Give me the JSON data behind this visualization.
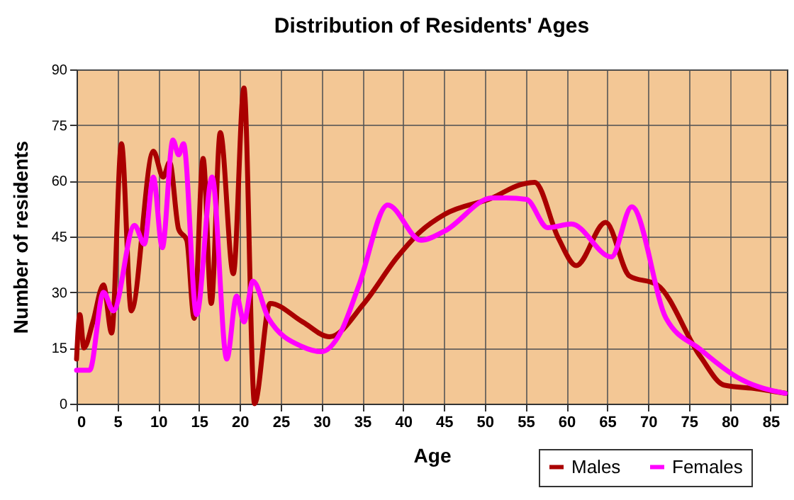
{
  "chart_data": {
    "type": "line",
    "title": "Distribution of Residents' Ages",
    "xlabel": "Age",
    "ylabel": "Number of residents",
    "xlim": [
      0,
      87
    ],
    "xticks": [
      0,
      5,
      10,
      15,
      20,
      25,
      30,
      35,
      40,
      45,
      50,
      55,
      60,
      65,
      70,
      75,
      80,
      85
    ],
    "ylim": [
      0,
      90
    ],
    "yticks": [
      0,
      15,
      30,
      45,
      60,
      75,
      90
    ],
    "grid": true,
    "legend": "bottom right",
    "marker": "none",
    "line_style": "solid",
    "series": [
      {
        "name": "Males",
        "color": "#aa0000",
        "x": [
          0,
          0.4,
          0.9,
          2,
          3.3,
          4.3,
          5.5,
          6.7,
          9.4,
          10.6,
          11.4,
          12.5,
          13.5,
          14.4,
          15.5,
          16.5,
          17.6,
          19.2,
          20.5,
          21.8,
          23.7,
          27.7,
          31,
          35.2,
          39.3,
          42.2,
          45.1,
          50.9,
          54.4,
          56.1,
          59,
          61.2,
          64.8,
          67.7,
          71.1,
          76.4,
          79.3,
          83.3,
          86.8
        ],
        "values": [
          12,
          24,
          15,
          22,
          32,
          19,
          70,
          25,
          68,
          61,
          65,
          47,
          44,
          23,
          66,
          27,
          73,
          35,
          85,
          0,
          27,
          22,
          18,
          27,
          39.5,
          46.5,
          51,
          55.4,
          59,
          59.6,
          44.6,
          37.2,
          48.8,
          34.4,
          32,
          12.7,
          5,
          4,
          2.8
        ]
      },
      {
        "name": "Females",
        "color": "#ff00ff",
        "x": [
          0,
          0.5,
          1.6,
          3.3,
          4.5,
          7.1,
          8.3,
          9.4,
          10.5,
          11.8,
          12.5,
          13.1,
          14.7,
          16.6,
          18.4,
          19.6,
          20.5,
          21.6,
          23.5,
          27.7,
          30,
          32.3,
          34.6,
          38.1,
          42.2,
          45.1,
          50.9,
          52.6,
          55.1,
          57.7,
          60.6,
          65.5,
          68,
          72.2,
          76.4,
          81.5,
          86.8
        ],
        "values": [
          9,
          9,
          9,
          30,
          25,
          48,
          43,
          61,
          42,
          71,
          67,
          70,
          24,
          61,
          12,
          29,
          22,
          33,
          23,
          15.3,
          14,
          19,
          32,
          53.5,
          44,
          46.5,
          55.4,
          55.4,
          55,
          47.4,
          48.4,
          39.5,
          53,
          23,
          14.6,
          6.4,
          2.8
        ]
      }
    ]
  }
}
